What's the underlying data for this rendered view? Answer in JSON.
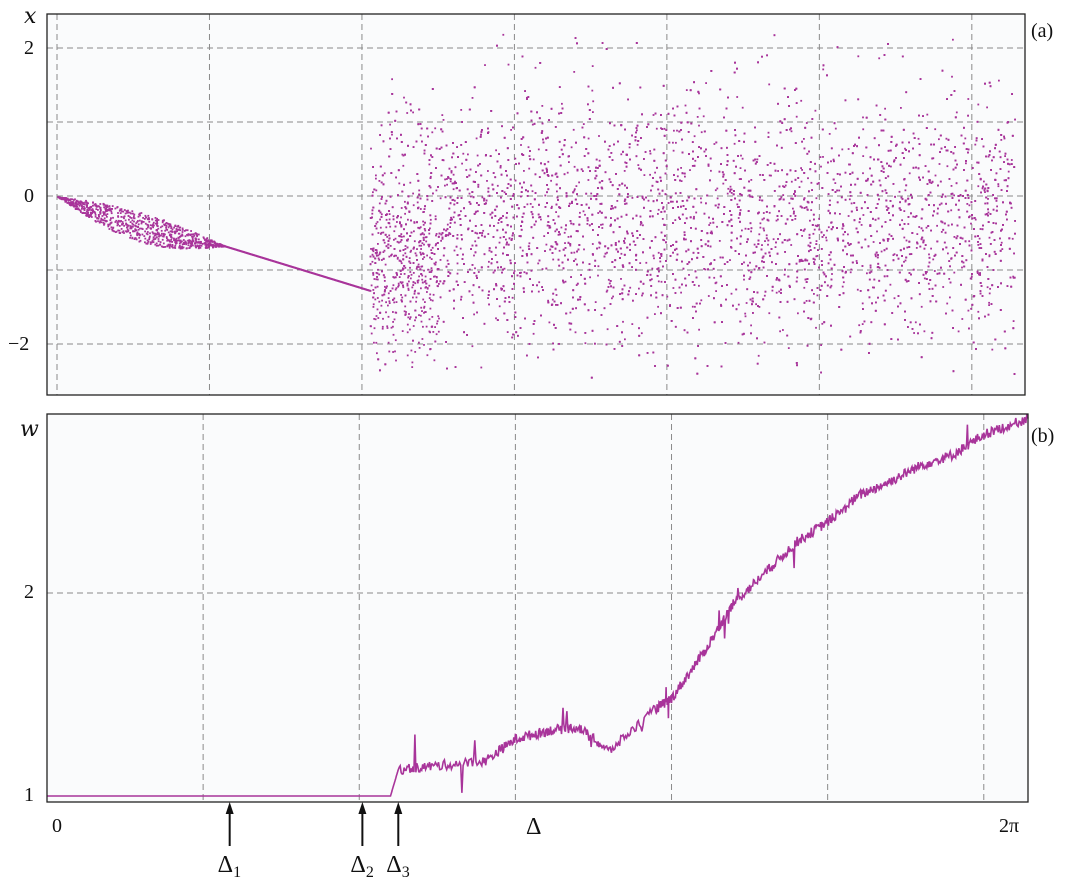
{
  "chart_data": [
    {
      "panel_label": "(a)",
      "type": "scatter",
      "ylabel": "x",
      "xlim": [
        0,
        6.2832
      ],
      "ylim": [
        -2.6,
        2.4
      ],
      "y_ticks": [
        {
          "value": 2,
          "label": "2"
        },
        {
          "value": 0,
          "label": "0"
        },
        {
          "value": -2,
          "label": "−2"
        }
      ],
      "x_grid": [
        0,
        1.0,
        2.0,
        3.0,
        4.0,
        5.0,
        6.0
      ],
      "y_grid": [
        2,
        1,
        0,
        -1,
        -2
      ],
      "grid": true,
      "color": "#a8349a",
      "regions": [
        {
          "kind": "fixed_point_branch",
          "x": [
            0.0,
            1.0
          ],
          "y": [
            0.0,
            -0.67
          ]
        },
        {
          "kind": "lens",
          "x": [
            0.0,
            1.1
          ],
          "y_center": [
            0.0,
            -0.67
          ],
          "max_halfwidth": 0.2
        },
        {
          "kind": "single_branch",
          "x": [
            1.1,
            2.05
          ],
          "y": [
            -0.67,
            -1.27
          ]
        },
        {
          "kind": "chaotic_band",
          "x": [
            2.05,
            6.28
          ],
          "y_range": [
            -2.5,
            2.3
          ]
        }
      ]
    },
    {
      "panel_label": "(b)",
      "type": "line",
      "ylabel": "w",
      "xlabel": "Δ",
      "xlim": [
        0,
        6.2832
      ],
      "ylim": [
        0.97,
        2.95
      ],
      "x_ticks": [
        {
          "value": 0,
          "label": "0"
        },
        {
          "value": 6.2832,
          "label": "2π"
        }
      ],
      "y_ticks": [
        {
          "value": 1,
          "label": "1"
        },
        {
          "value": 2,
          "label": "2"
        }
      ],
      "x_grid": [
        1.0,
        2.0,
        3.0,
        4.0,
        5.0,
        6.0
      ],
      "y_grid": [
        2
      ],
      "grid": true,
      "color": "#a8349a",
      "x": [
        0.0,
        1.0,
        2.0,
        2.2,
        2.25,
        2.5,
        2.8,
        3.0,
        3.2,
        3.4,
        3.6,
        3.9,
        4.0,
        4.2,
        4.4,
        4.6,
        4.8,
        5.0,
        5.2,
        5.4,
        5.6,
        5.8,
        6.0,
        6.2832
      ],
      "y": [
        1.0,
        1.0,
        1.0,
        1.0,
        1.13,
        1.15,
        1.17,
        1.28,
        1.32,
        1.34,
        1.22,
        1.43,
        1.48,
        1.7,
        1.95,
        2.1,
        2.25,
        2.35,
        2.48,
        2.55,
        2.63,
        2.68,
        2.78,
        2.86
      ],
      "annotations": [
        {
          "label": "Δ",
          "sub": "1",
          "x": 1.17
        },
        {
          "label": "Δ",
          "sub": "2",
          "x": 2.02
        },
        {
          "label": "Δ",
          "sub": "3",
          "x": 2.25
        }
      ]
    }
  ]
}
